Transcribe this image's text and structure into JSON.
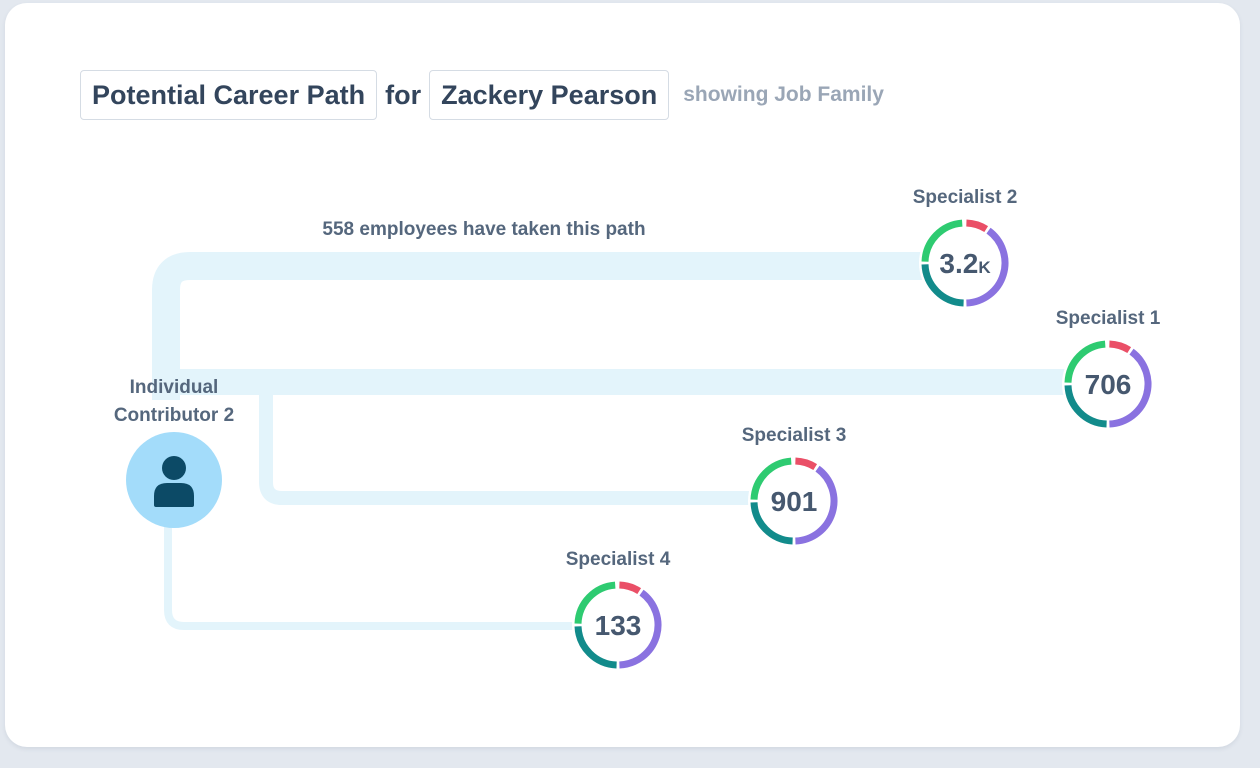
{
  "header": {
    "title": "Potential Career Path",
    "connector": "for",
    "employee_name": "Zackery Pearson",
    "subtitle": "showing Job Family"
  },
  "path_caption": "558 employees have taken this path",
  "source_node": {
    "label_line1": "Individual",
    "label_line2": "Contributor 2",
    "icon": "person-icon"
  },
  "destinations": [
    {
      "id": "specialist-2",
      "label": "Specialist 2",
      "value": "3.2",
      "suffix": "K"
    },
    {
      "id": "specialist-1",
      "label": "Specialist 1",
      "value": "706",
      "suffix": ""
    },
    {
      "id": "specialist-3",
      "label": "Specialist 3",
      "value": "901",
      "suffix": ""
    },
    {
      "id": "specialist-4",
      "label": "Specialist 4",
      "value": "133",
      "suffix": ""
    }
  ],
  "colors": {
    "path": "#e3f4fb",
    "avatar_bg": "#a3dcfa",
    "avatar_icon": "#0c4a66",
    "segments": [
      "#ea4f67",
      "#8a72e0",
      "#128b8b",
      "#2ecb71"
    ]
  }
}
